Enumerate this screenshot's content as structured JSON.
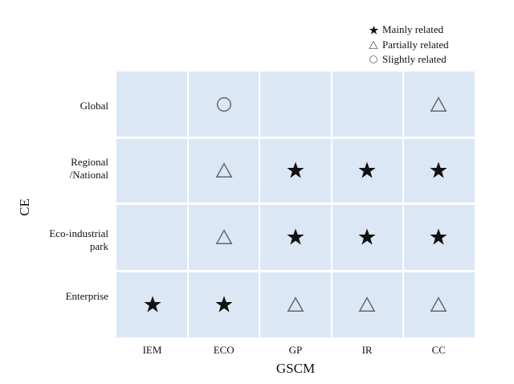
{
  "legend": {
    "items": [
      {
        "symbol": "star",
        "label": "Mainly related"
      },
      {
        "symbol": "triangle",
        "label": "Partially related"
      },
      {
        "symbol": "circle",
        "label": "Slightly related"
      }
    ]
  },
  "axes": {
    "x_title": "GSCM",
    "y_title": "CE"
  },
  "columns": [
    "IEM",
    "ECO",
    "GP",
    "IR",
    "CC"
  ],
  "rows": [
    {
      "label": "Global",
      "cells": [
        "",
        "circle",
        "",
        "",
        "triangle"
      ]
    },
    {
      "label": "Regional\n/National",
      "cells": [
        "",
        "triangle",
        "star",
        "star",
        "star"
      ]
    },
    {
      "label": "Eco-industrial\npark",
      "cells": [
        "",
        "triangle",
        "star",
        "star",
        "star"
      ]
    },
    {
      "label": "Enterprise",
      "cells": [
        "star",
        "star",
        "triangle",
        "triangle",
        "triangle"
      ]
    }
  ],
  "colors": {
    "grid_fill": "#dce7f5",
    "symbol": "#111111",
    "outline": "#666666"
  }
}
